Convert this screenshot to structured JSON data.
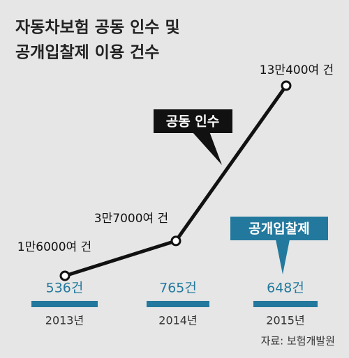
{
  "chart_data": {
    "type": "line",
    "title": [
      "자동차보험 공동 인수 및",
      "공개입찰제 이용 건수"
    ],
    "categories": [
      "2013년",
      "2014년",
      "2015년"
    ],
    "series": [
      {
        "name": "공동 인수",
        "color": "#111111",
        "values": [
          16000,
          37000,
          130400
        ],
        "value_labels": [
          "1만6000여 건",
          "3만7000여 건",
          "13만400여 건"
        ]
      },
      {
        "name": "공개입찰제",
        "color": "#23799d",
        "values": [
          536,
          765,
          648
        ],
        "value_labels": [
          "536건",
          "765건",
          "648건"
        ]
      }
    ],
    "source": "자료: 보험개발원"
  }
}
